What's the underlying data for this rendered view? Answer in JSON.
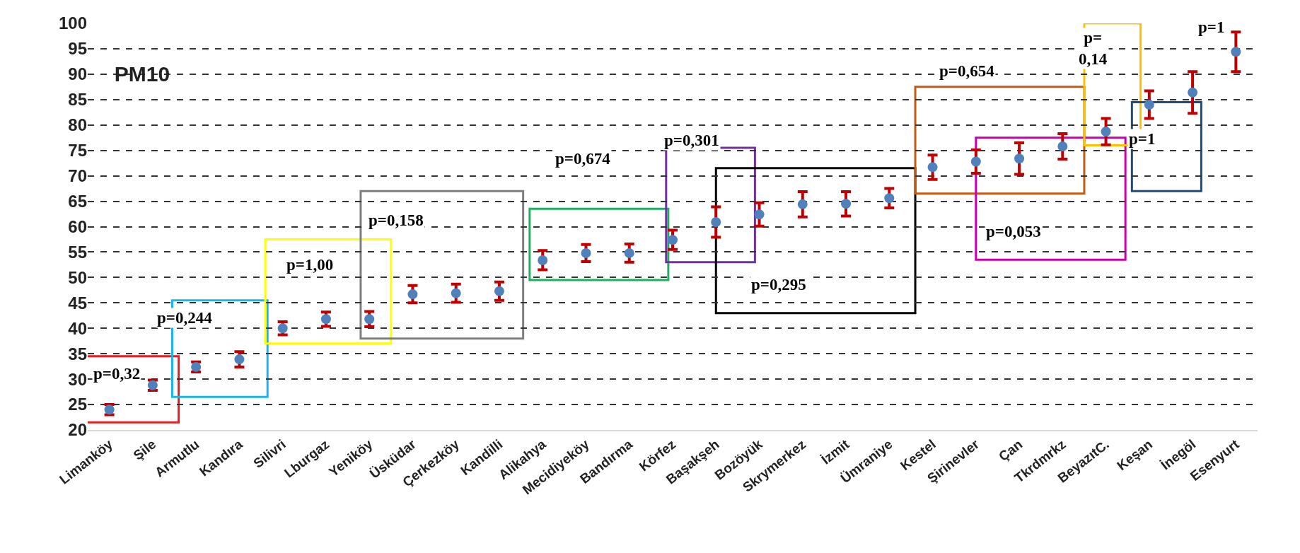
{
  "chart_data": {
    "type": "scatter",
    "title": "PM10",
    "categories": [
      "Limanköy",
      "Şile",
      "Armutlu",
      "Kandıra",
      "Silivri",
      "Lburgaz",
      "Yeniköy",
      "Üsküdar",
      "Çerkezköy",
      "Kandilli",
      "Alikahya",
      "Mecidiyeköy",
      "Bandırma",
      "Körfez",
      "Başakşeh",
      "Bozöyük",
      "Skrymerkez",
      "İzmit",
      "Ümraniye",
      "Kestel",
      "Şirinevler",
      "Çan",
      "Tkrdmrkz",
      "BeyazıtC.",
      "Keşan",
      "İnegöl",
      "Esenyurt"
    ],
    "series": [
      {
        "color": "#4f81bd",
        "values": [
          24.0,
          28.8,
          32.4,
          33.9,
          40.0,
          41.8,
          41.8,
          46.7,
          46.9,
          47.3,
          53.4,
          54.8,
          54.8,
          57.4,
          60.9,
          62.4,
          64.4,
          64.5,
          65.6,
          71.7,
          72.8,
          73.4,
          75.8,
          78.7,
          84.0,
          86.4,
          94.4
        ],
        "errors": [
          1.0,
          1.0,
          1.0,
          1.5,
          1.3,
          1.4,
          1.5,
          1.7,
          1.8,
          1.8,
          1.9,
          1.7,
          1.8,
          1.9,
          3.0,
          2.3,
          2.5,
          2.4,
          1.9,
          2.4,
          2.3,
          3.1,
          2.5,
          2.6,
          2.7,
          4.1,
          3.9
        ]
      }
    ],
    "ylim": [
      20,
      100
    ],
    "yticks": [
      20,
      25,
      30,
      35,
      40,
      45,
      50,
      55,
      60,
      65,
      70,
      75,
      80,
      85,
      90,
      95,
      100
    ],
    "grid": "y",
    "marker": "circle",
    "annotations": [
      "p=0,32",
      "p=0,244",
      "p=1,00",
      "p=0,158",
      "p=0,674",
      "p=0,301",
      "p=0,295",
      "p=0,654",
      "p=0,053",
      "p=\n0,14",
      "p=1",
      "p=1"
    ]
  }
}
